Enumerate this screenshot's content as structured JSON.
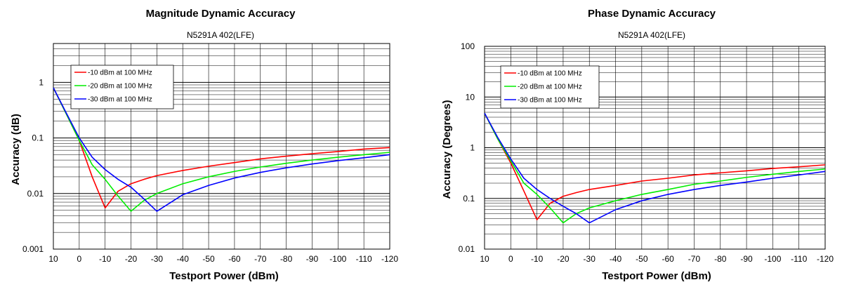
{
  "colors": {
    "red": "#ff0000",
    "green": "#00ee00",
    "blue": "#0000ff",
    "grid": "#000000"
  },
  "chart_data": [
    {
      "type": "line",
      "title": "Magnitude Dynamic Accuracy",
      "subtitle": "N5291A 402(LFE)",
      "xlabel": "Testport Power (dBm)",
      "ylabel": "Accuracy (dB)",
      "yscale": "log",
      "xlim": [
        10,
        -120
      ],
      "ylim": [
        0.001,
        5
      ],
      "x_ticks": [
        10,
        0,
        -10,
        -20,
        -30,
        -40,
        -50,
        -60,
        -70,
        -80,
        -90,
        -100,
        -110,
        -120
      ],
      "y_ticks": [
        {
          "value": 0.001,
          "label": "0.001"
        },
        {
          "value": 0.01,
          "label": "0.01"
        },
        {
          "value": 0.1,
          "label": "0.1"
        },
        {
          "value": 1,
          "label": "1"
        }
      ],
      "legend_position": "top-left",
      "x": [
        10,
        5,
        0,
        -5,
        -10,
        -15,
        -20,
        -25,
        -30,
        -40,
        -50,
        -60,
        -70,
        -80,
        -90,
        -100,
        -110,
        -120
      ],
      "series": [
        {
          "name": "-10 dBm at 100 MHz",
          "color": "#ff0000",
          "values": [
            0.8,
            0.27,
            0.09,
            0.02,
            0.0055,
            0.011,
            0.015,
            0.018,
            0.021,
            0.026,
            0.031,
            0.036,
            0.042,
            0.047,
            0.052,
            0.057,
            0.063,
            0.067
          ]
        },
        {
          "name": "-20 dBm at 100 MHz",
          "color": "#00ee00",
          "values": [
            0.8,
            0.27,
            0.09,
            0.033,
            0.018,
            0.009,
            0.0048,
            0.0075,
            0.01,
            0.015,
            0.02,
            0.025,
            0.03,
            0.035,
            0.04,
            0.045,
            0.05,
            0.055
          ]
        },
        {
          "name": "-30 dBm at 100 MHz",
          "color": "#0000ff",
          "values": [
            0.8,
            0.28,
            0.1,
            0.045,
            0.027,
            0.018,
            0.013,
            0.008,
            0.0048,
            0.0095,
            0.014,
            0.019,
            0.024,
            0.029,
            0.034,
            0.039,
            0.044,
            0.05
          ]
        }
      ]
    },
    {
      "type": "line",
      "title": "Phase Dynamic Accuracy",
      "subtitle": "N5291A 402(LFE)",
      "xlabel": "Testport Power (dBm)",
      "ylabel": "Accuracy (Degrees)",
      "yscale": "log",
      "xlim": [
        10,
        -120
      ],
      "ylim": [
        0.01,
        100
      ],
      "x_ticks": [
        10,
        0,
        -10,
        -20,
        -30,
        -40,
        -50,
        -60,
        -70,
        -80,
        -90,
        -100,
        -110,
        -120
      ],
      "y_ticks": [
        {
          "value": 0.01,
          "label": "0.01"
        },
        {
          "value": 0.1,
          "label": "0.1"
        },
        {
          "value": 1,
          "label": "1"
        },
        {
          "value": 10,
          "label": "10"
        },
        {
          "value": 100,
          "label": "100"
        }
      ],
      "legend_position": "top-left",
      "x": [
        10,
        5,
        0,
        -5,
        -10,
        -15,
        -20,
        -25,
        -30,
        -40,
        -50,
        -60,
        -70,
        -80,
        -90,
        -100,
        -110,
        -120
      ],
      "series": [
        {
          "name": "-10 dBm at 100 MHz",
          "color": "#ff0000",
          "values": [
            4.8,
            1.5,
            0.5,
            0.14,
            0.038,
            0.08,
            0.11,
            0.13,
            0.15,
            0.18,
            0.22,
            0.25,
            0.29,
            0.32,
            0.35,
            0.39,
            0.42,
            0.46
          ]
        },
        {
          "name": "-20 dBm at 100 MHz",
          "color": "#00ee00",
          "values": [
            4.8,
            1.5,
            0.55,
            0.2,
            0.12,
            0.065,
            0.033,
            0.05,
            0.065,
            0.09,
            0.12,
            0.15,
            0.19,
            0.22,
            0.26,
            0.3,
            0.34,
            0.38
          ]
        },
        {
          "name": "-30 dBm at 100 MHz",
          "color": "#0000ff",
          "values": [
            4.8,
            1.6,
            0.6,
            0.25,
            0.15,
            0.1,
            0.07,
            0.05,
            0.033,
            0.06,
            0.09,
            0.12,
            0.15,
            0.18,
            0.21,
            0.25,
            0.29,
            0.34
          ]
        }
      ]
    }
  ]
}
